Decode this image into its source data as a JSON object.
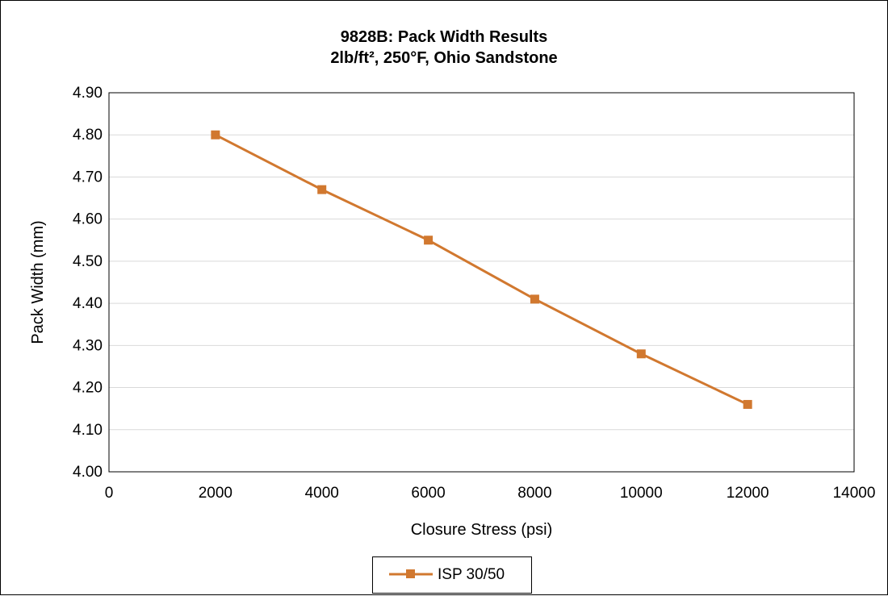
{
  "chart_data": {
    "type": "line",
    "title": "9828B: Pack Width Results",
    "subtitle": "2lb/ft², 250°F, Ohio Sandstone",
    "xlabel": "Closure Stress (psi)",
    "ylabel": "Pack Width (mm)",
    "xlim": [
      0,
      14000
    ],
    "ylim": [
      4.0,
      4.9
    ],
    "x_ticks": [
      0,
      2000,
      4000,
      6000,
      8000,
      10000,
      12000,
      14000
    ],
    "y_ticks": [
      "4.00",
      "4.10",
      "4.20",
      "4.30",
      "4.40",
      "4.50",
      "4.60",
      "4.70",
      "4.80",
      "4.90"
    ],
    "grid": "horizontal",
    "legend_position": "bottom",
    "series": [
      {
        "name": "ISP 30/50",
        "color": "#D1782F",
        "marker": "square",
        "x": [
          2000,
          4000,
          6000,
          8000,
          10000,
          12000
        ],
        "y": [
          4.8,
          4.67,
          4.55,
          4.41,
          4.28,
          4.16
        ]
      }
    ]
  }
}
